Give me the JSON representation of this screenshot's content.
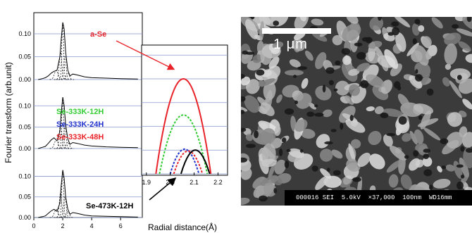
{
  "chart_data": {
    "type": "line",
    "ylabel": "Fourier transform (arb.unit)",
    "xlabel": "Radial distance(Å)",
    "main_panels": [
      {
        "name": "a-Se",
        "yticks": [
          "0.00",
          "0.05",
          "0.10"
        ],
        "ylim": [
          0,
          0.14
        ],
        "x": [
          0.3,
          0.6,
          0.8,
          1.0,
          1.2,
          1.4,
          1.6,
          1.8,
          1.9,
          2.0,
          2.1,
          2.2,
          2.35,
          2.5,
          2.7,
          3.0,
          3.5,
          4.0,
          5.0,
          6.0,
          7.2
        ],
        "values": [
          0.0,
          0.002,
          0.004,
          0.008,
          0.014,
          0.018,
          0.02,
          0.05,
          0.09,
          0.125,
          0.11,
          0.06,
          0.02,
          0.008,
          0.012,
          0.01,
          0.006,
          0.004,
          0.003,
          0.002,
          0.001
        ]
      },
      {
        "name": "Se-333K",
        "yticks": [
          "0.00",
          "0.05",
          "0.10"
        ],
        "ylim": [
          0,
          0.14
        ],
        "x": [
          0.3,
          0.6,
          0.8,
          1.0,
          1.2,
          1.4,
          1.6,
          1.8,
          1.9,
          2.0,
          2.1,
          2.2,
          2.35,
          2.5,
          2.7,
          3.0,
          3.5,
          4.0,
          5.0,
          6.0,
          7.2
        ],
        "values": [
          0.0,
          0.003,
          0.005,
          0.012,
          0.02,
          0.025,
          0.018,
          0.04,
          0.085,
          0.12,
          0.1,
          0.055,
          0.022,
          0.01,
          0.014,
          0.012,
          0.008,
          0.006,
          0.004,
          0.003,
          0.002
        ]
      },
      {
        "name": "Se-473K-12H",
        "yticks": [
          "0.00",
          "0.05",
          "0.10"
        ],
        "ylim": [
          0,
          0.14
        ],
        "x": [
          0.3,
          0.6,
          0.8,
          1.0,
          1.2,
          1.4,
          1.6,
          1.8,
          1.9,
          2.0,
          2.1,
          2.2,
          2.35,
          2.5,
          2.7,
          3.0,
          3.5,
          4.0,
          5.0,
          6.0,
          7.2
        ],
        "values": [
          0.0,
          0.002,
          0.004,
          0.01,
          0.016,
          0.02,
          0.015,
          0.035,
          0.08,
          0.115,
          0.095,
          0.05,
          0.02,
          0.008,
          0.012,
          0.01,
          0.006,
          0.004,
          0.003,
          0.002,
          0.001
        ]
      }
    ],
    "xticks": [
      "0",
      "2",
      "4",
      "6"
    ],
    "xlim": [
      0,
      7.5
    ],
    "inset": {
      "xticks": [
        "1.9",
        "2.0",
        "2.1",
        "2.2"
      ],
      "xlim": [
        1.88,
        2.24
      ],
      "series": [
        {
          "name": "a-Se",
          "color": "#e8242a",
          "dash": false,
          "center": 2.055,
          "width": 0.115,
          "peak": 1.0
        },
        {
          "name": "Se-333K-12H",
          "color": "#33cc33",
          "dash": true,
          "center": 2.055,
          "width": 0.1,
          "peak": 0.62
        },
        {
          "name": "Se-333K-24H",
          "color": "#2233cc",
          "dash": true,
          "center": 2.06,
          "width": 0.06,
          "peak": 0.26
        },
        {
          "name": "Se-333K-48H",
          "color": "#e8242a",
          "dash": true,
          "center": 2.075,
          "width": 0.06,
          "peak": 0.24
        },
        {
          "name": "Se-473K-12H",
          "color": "#000000",
          "dash": false,
          "center": 2.105,
          "width": 0.06,
          "peak": 0.25
        }
      ]
    },
    "labels": [
      {
        "text": "a-Se",
        "color": "#e8242a"
      },
      {
        "text": "Se-333K-12H",
        "color": "#33cc33"
      },
      {
        "text": "Se-333K-24H",
        "color": "#2233cc"
      },
      {
        "text": "Se-333K-48H",
        "color": "#e8242a"
      },
      {
        "text": "Se-473K-12H",
        "color": "#000000"
      }
    ]
  },
  "sem": {
    "scale_label": "1 μm",
    "info": "000016 SEI  5.0kV  ×37,000  100nm  WD16mm"
  }
}
